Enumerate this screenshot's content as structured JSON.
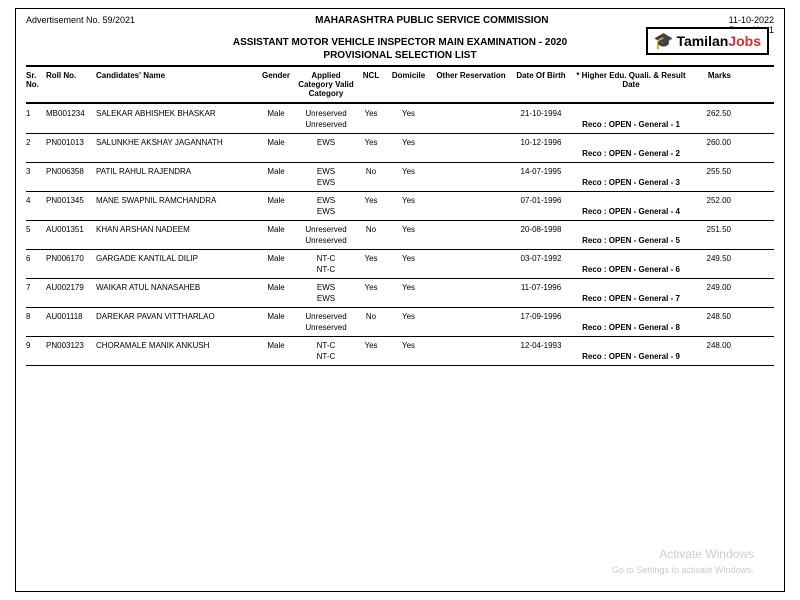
{
  "header": {
    "advertisement": "Advertisement No. 59/2021",
    "commission": "MAHARASHTRA PUBLIC SERVICE COMMISSION",
    "date": "11-10-2022",
    "page": "Page No. 1",
    "exam_title": "ASSISTANT MOTOR VEHICLE INSPECTOR MAIN EXAMINATION  - 2020",
    "list_title": "PROVISIONAL SELECTION LIST"
  },
  "logo": {
    "text1": "Tamilan",
    "text2": "Jobs"
  },
  "columns": {
    "sr": "Sr. No.",
    "roll": "Roll No.",
    "name": "Candidates' Name",
    "gender": "Gender",
    "applied": "Applied Category Valid Category",
    "ncl": "NCL",
    "domicile": "Domicile",
    "reservation": "Other Reservation",
    "dob": "Date Of Birth",
    "quali": "* Higher Edu. Quali. & Result Date",
    "marks": "Marks"
  },
  "reco_label": "Reco :",
  "rows": [
    {
      "sr": "1",
      "roll": "MB001234",
      "name": "SALEKAR ABHISHEK BHASKAR",
      "gender": "Male",
      "applied": "Unreserved",
      "valid": "Unreserved",
      "ncl": "Yes",
      "domicile": "Yes",
      "reservation": "",
      "dob": "21-10-1994",
      "marks": "262.50",
      "reco": "OPEN - General - 1"
    },
    {
      "sr": "2",
      "roll": "PN001013",
      "name": "SALUNKHE AKSHAY JAGANNATH",
      "gender": "Male",
      "applied": "EWS",
      "valid": "",
      "ncl": "Yes",
      "domicile": "Yes",
      "reservation": "",
      "dob": "10-12-1996",
      "marks": "260.00",
      "reco": "OPEN - General - 2"
    },
    {
      "sr": "3",
      "roll": "PN006358",
      "name": "PATIL RAHUL RAJENDRA",
      "gender": "Male",
      "applied": "EWS",
      "valid": "EWS",
      "ncl": "No",
      "domicile": "Yes",
      "reservation": "",
      "dob": "14-07-1995",
      "marks": "255.50",
      "reco": "OPEN - General - 3"
    },
    {
      "sr": "4",
      "roll": "PN001345",
      "name": "MANE SWAPNIL RAMCHANDRA",
      "gender": "Male",
      "applied": "EWS",
      "valid": "EWS",
      "ncl": "Yes",
      "domicile": "Yes",
      "reservation": "",
      "dob": "07-01-1996",
      "marks": "252.00",
      "reco": "OPEN - General - 4"
    },
    {
      "sr": "5",
      "roll": "AU001351",
      "name": "KHAN ARSHAN NADEEM",
      "gender": "Male",
      "applied": "Unreserved",
      "valid": "Unreserved",
      "ncl": "No",
      "domicile": "Yes",
      "reservation": "",
      "dob": "20-08-1998",
      "marks": "251.50",
      "reco": "OPEN - General - 5"
    },
    {
      "sr": "6",
      "roll": "PN006170",
      "name": "GARGADE KANTILAL DILIP",
      "gender": "Male",
      "applied": "NT-C",
      "valid": "NT-C",
      "ncl": "Yes",
      "domicile": "Yes",
      "reservation": "",
      "dob": "03-07-1992",
      "marks": "249.50",
      "reco": "OPEN - General - 6"
    },
    {
      "sr": "7",
      "roll": "AU002179",
      "name": "WAIKAR ATUL NANASAHEB",
      "gender": "Male",
      "applied": "EWS",
      "valid": "EWS",
      "ncl": "Yes",
      "domicile": "Yes",
      "reservation": "",
      "dob": "11-07-1996",
      "marks": "249.00",
      "reco": "OPEN - General - 7"
    },
    {
      "sr": "8",
      "roll": "AU001118",
      "name": "DAREKAR PAVAN VITTHARLAO",
      "gender": "Male",
      "applied": "Unreserved",
      "valid": "Unreserved",
      "ncl": "No",
      "domicile": "Yes",
      "reservation": "",
      "dob": "17-09-1996",
      "marks": "248.50",
      "reco": "OPEN - General - 8"
    },
    {
      "sr": "9",
      "roll": "PN003123",
      "name": "CHORAMALE MANIK ANKUSH",
      "gender": "Male",
      "applied": "NT-C",
      "valid": "NT-C",
      "ncl": "Yes",
      "domicile": "Yes",
      "reservation": "",
      "dob": "12-04-1993",
      "marks": "248.00",
      "reco": "OPEN - General - 9"
    }
  ],
  "watermark": {
    "title": "Activate Windows",
    "sub": "Go to Settings to activate Windows."
  },
  "colors": {
    "border": "#000000",
    "text": "#000000",
    "jobs_red": "#d32f2f",
    "watermark": "#cccccc",
    "background": "#ffffff"
  }
}
